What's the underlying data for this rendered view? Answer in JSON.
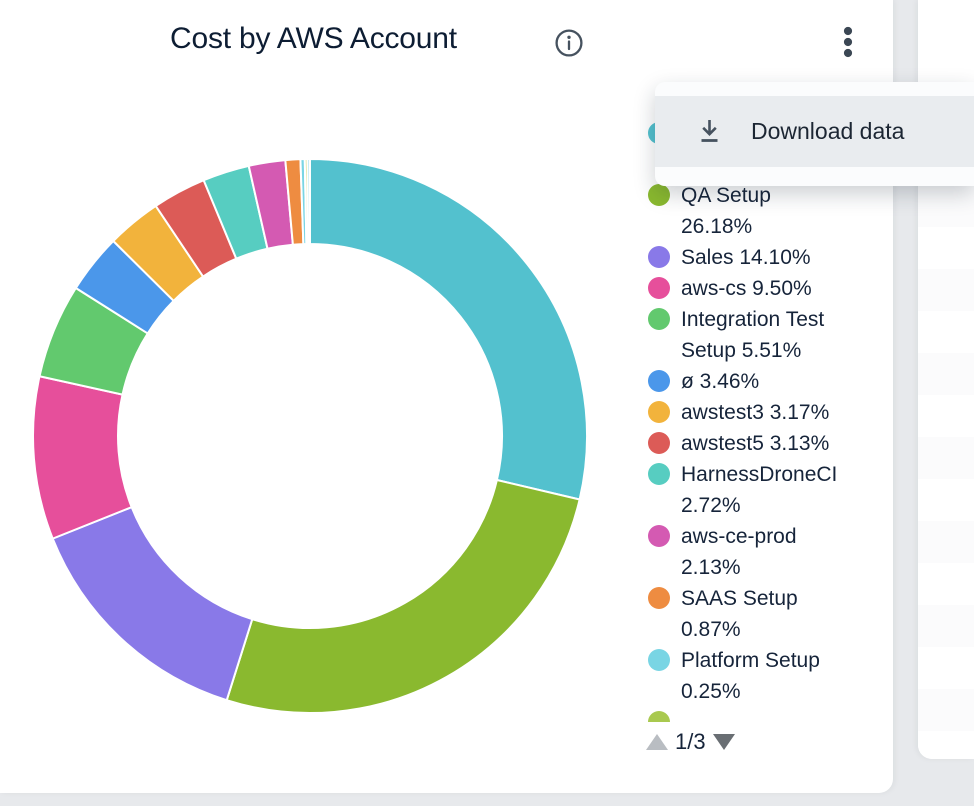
{
  "card": {
    "title": "Cost by AWS Account",
    "menu": {
      "items": [
        {
          "label": "Download data"
        }
      ]
    },
    "legend_pagination": {
      "label": "1/3"
    }
  },
  "chart_data": {
    "type": "pie",
    "style": "donut",
    "title": "Cost by AWS Account",
    "value_unit": "percent",
    "start_angle_deg": 0,
    "direction": "clockwise",
    "legend_position": "right",
    "legend_page": "1/3",
    "segments": [
      {
        "label": "",
        "value": 28.68,
        "color": "#53c1ce"
      },
      {
        "label": "QA Setup",
        "value": 26.18,
        "color": "#8ab92f"
      },
      {
        "label": "Sales",
        "value": 14.1,
        "color": "#8979e8"
      },
      {
        "label": "aws-cs",
        "value": 9.5,
        "color": "#e64f9b"
      },
      {
        "label": "Integration Test Setup",
        "value": 5.51,
        "color": "#62c96e"
      },
      {
        "label": "ø",
        "value": 3.46,
        "color": "#4b97ea"
      },
      {
        "label": "awstest3",
        "value": 3.17,
        "color": "#f2b33c"
      },
      {
        "label": "awstest5",
        "value": 3.13,
        "color": "#dc5b57"
      },
      {
        "label": "HarnessDroneCI",
        "value": 2.72,
        "color": "#57cdc1"
      },
      {
        "label": "aws-ce-prod",
        "value": 2.13,
        "color": "#d45ab2"
      },
      {
        "label": "SAAS Setup",
        "value": 0.87,
        "color": "#ee8c41"
      },
      {
        "label": "Platform Setup",
        "value": 0.25,
        "color": "#79d5e4"
      },
      {
        "label": "",
        "value": 0.15,
        "color": "#cdd96d"
      },
      {
        "label": "",
        "value": 0.15,
        "color": "#9fdde8"
      }
    ]
  },
  "legend": {
    "items": [
      {
        "color": "#53c1ce",
        "lines": [
          "",
          ""
        ],
        "occluded": true
      },
      {
        "color": "#8ab92f",
        "lines": [
          "QA Setup",
          "26.18%"
        ]
      },
      {
        "color": "#8979e8",
        "lines": [
          "Sales 14.10%"
        ]
      },
      {
        "color": "#e64f9b",
        "lines": [
          "aws-cs 9.50%"
        ]
      },
      {
        "color": "#62c96e",
        "lines": [
          "Integration Test",
          "Setup 5.51%"
        ]
      },
      {
        "color": "#4b97ea",
        "lines": [
          "ø 3.46%"
        ]
      },
      {
        "color": "#f2b33c",
        "lines": [
          "awstest3 3.17%"
        ]
      },
      {
        "color": "#dc5b57",
        "lines": [
          "awstest5 3.13%"
        ]
      },
      {
        "color": "#57cdc1",
        "lines": [
          "HarnessDroneCI",
          "2.72%"
        ]
      },
      {
        "color": "#d45ab2",
        "lines": [
          "aws-ce-prod",
          "2.13%"
        ]
      },
      {
        "color": "#ee8c41",
        "lines": [
          "SAAS Setup",
          "0.87%"
        ]
      },
      {
        "color": "#79d5e4",
        "lines": [
          "Platform Setup",
          "0.25%"
        ]
      },
      {
        "color": "#a9c94f",
        "lines": [],
        "partial": true
      }
    ]
  },
  "colors": {
    "title_text": "#0d1d33",
    "legend_text": "#16243a",
    "page_bg": "#e7e9ec",
    "menu_row_bg": "#e9ecef",
    "icon_stroke": "#46525f"
  }
}
